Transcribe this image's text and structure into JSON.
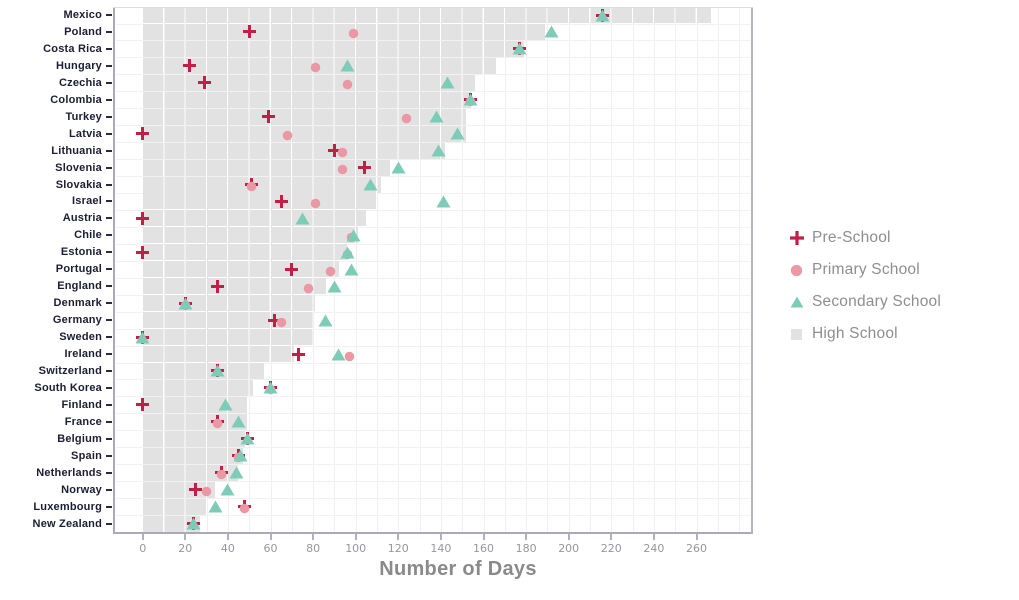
{
  "chart_data": {
    "type": "scatter",
    "title": "",
    "xlabel": "Number of Days",
    "x_ticks": [
      0,
      20,
      40,
      60,
      80,
      100,
      120,
      140,
      160,
      180,
      200,
      220,
      240,
      260
    ],
    "x_tick_labels": [
      "0",
      "20",
      "40",
      "60",
      "80",
      "100",
      "120",
      "140",
      "160",
      "180",
      "200",
      "220",
      "240",
      "260"
    ],
    "x_domain": [
      -13,
      286
    ],
    "grid_minor_step": 10,
    "legend_position": "right",
    "countries": [
      "Mexico",
      "Poland",
      "Costa Rica",
      "Hungary",
      "Czechia",
      "Colombia",
      "Turkey",
      "Latvia",
      "Lithuania",
      "Slovenia",
      "Slovakia",
      "Israel",
      "Austria",
      "Chile",
      "Estonia",
      "Portugal",
      "England",
      "Denmark",
      "Germany",
      "Sweden",
      "Ireland",
      "Switzerland",
      "South Korea",
      "Finland",
      "France",
      "Belgium",
      "Spain",
      "Netherlands",
      "Norway",
      "Luxembourg",
      "New Zealand"
    ],
    "series": [
      {
        "name": "Pre-School",
        "marker": "cross",
        "color": "#c11f45",
        "values": [
          216,
          50,
          177,
          22,
          29,
          154,
          59,
          0,
          90,
          104,
          51,
          65,
          0,
          null,
          0,
          70,
          35,
          20,
          62,
          0,
          73,
          35,
          60,
          0,
          35,
          49,
          45,
          37,
          25,
          48,
          24
        ]
      },
      {
        "name": "Primary School",
        "marker": "circle",
        "color": "#e998a4",
        "values": [
          null,
          99,
          null,
          81,
          96,
          154,
          124,
          68,
          94,
          94,
          51,
          81,
          null,
          98,
          96,
          88,
          78,
          20,
          65,
          null,
          97,
          null,
          60,
          null,
          35,
          null,
          45,
          37,
          30,
          48,
          null
        ]
      },
      {
        "name": "Secondary School",
        "marker": "triangle",
        "color": "#7dccb7",
        "values": [
          216,
          192,
          177,
          96,
          143,
          154,
          138,
          148,
          139,
          120,
          107,
          141,
          75,
          99,
          96,
          98,
          90,
          20,
          86,
          0,
          92,
          35,
          60,
          39,
          45,
          49,
          46,
          44,
          40,
          34,
          24
        ]
      },
      {
        "name": "High School",
        "marker": "bar",
        "color": "#e3e2e2",
        "values": [
          267,
          189,
          179,
          166,
          156,
          154,
          152,
          152,
          142,
          116,
          112,
          110,
          105,
          101,
          96,
          92,
          86,
          81,
          80,
          80,
          71,
          57,
          52,
          49,
          49,
          48,
          47,
          45,
          34,
          30,
          27
        ]
      }
    ],
    "colors": {
      "bar_fill": "#e3e2e2",
      "grid_on_white": "#f0f0ef",
      "grid_on_bar": "#ffffff",
      "axis_line": "#aaaab8",
      "country_label": "#1d1d33",
      "tick_label": "#96969e",
      "axis_title": "#8a8a8a",
      "legend_text": "#8e8e8e"
    }
  }
}
